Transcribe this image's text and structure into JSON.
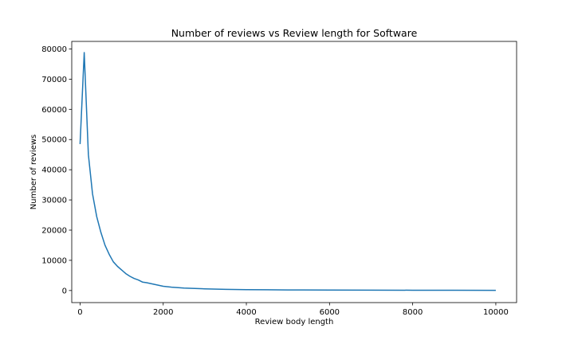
{
  "chart_data": {
    "type": "line",
    "title": "Number of reviews vs Review length for Software",
    "xlabel": "Review body length",
    "ylabel": "Number of reviews",
    "xlim": [
      -200,
      10500
    ],
    "ylim": [
      -4000,
      82500
    ],
    "xticks": [
      0,
      2000,
      4000,
      6000,
      8000,
      10000
    ],
    "yticks": [
      0,
      10000,
      20000,
      30000,
      40000,
      50000,
      60000,
      70000,
      80000
    ],
    "grid": false,
    "series": [
      {
        "color": "#1f77b4",
        "x": [
          0,
          100,
          200,
          300,
          400,
          500,
          600,
          700,
          800,
          900,
          1000,
          1100,
          1200,
          1300,
          1400,
          1500,
          1600,
          1700,
          1800,
          1900,
          2000,
          2200,
          2500,
          3000,
          3500,
          4000,
          4500,
          5000,
          6000,
          7000,
          8000,
          9000,
          10000
        ],
        "y": [
          48500,
          78800,
          45000,
          32000,
          24500,
          19300,
          15000,
          12000,
          9500,
          8000,
          6800,
          5600,
          4700,
          4000,
          3500,
          2800,
          2600,
          2300,
          2000,
          1700,
          1400,
          1100,
          800,
          550,
          400,
          300,
          250,
          200,
          150,
          120,
          100,
          80,
          60
        ]
      }
    ]
  }
}
